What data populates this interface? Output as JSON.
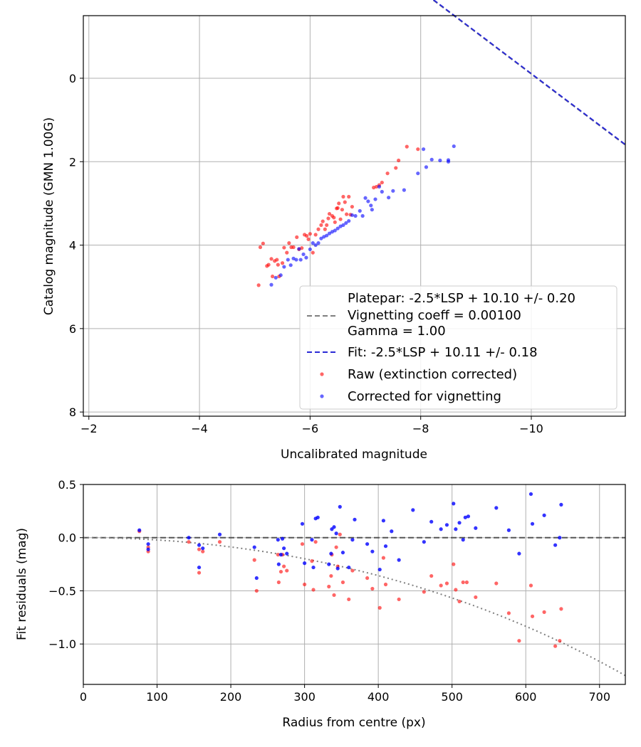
{
  "chart_data": [
    {
      "type": "scatter",
      "xlabel": "Uncalibrated magnitude",
      "ylabel": "Catalog magnitude (GMN 1.00G)",
      "xlim": [
        -1.9,
        -11.7
      ],
      "ylim": [
        8.1,
        -1.5
      ],
      "xticks": [
        -2,
        -4,
        -6,
        -8,
        -10
      ],
      "xtick_labels": [
        "−2",
        "−4",
        "−6",
        "−8",
        "−10"
      ],
      "yticks": [
        0,
        2,
        4,
        6,
        8
      ],
      "ytick_labels": [
        "0",
        "2",
        "4",
        "6",
        "8"
      ],
      "grid": true,
      "legend_position": "lower-right",
      "legend": [
        {
          "label": "Platepar: -2.5*LSP + 10.10 +/- 0.20",
          "marker": "none"
        },
        {
          "label": "Vignetting coeff = 0.00100",
          "marker": "dashed-line",
          "color": "#7f7f7f"
        },
        {
          "label": "Gamma = 1.00",
          "marker": "none"
        },
        {
          "label": "Fit: -2.5*LSP + 10.11 +/- 0.18",
          "marker": "dashed-line",
          "color": "#2a2ad6"
        },
        {
          "label": "Raw (extinction corrected)",
          "marker": "dot",
          "color": "#ff0000"
        },
        {
          "label": "Corrected for vignetting",
          "marker": "dot",
          "color": "#0000ff"
        }
      ],
      "lines": [
        {
          "name": "Platepar",
          "slope": -1,
          "intercept": -10.1,
          "color": "#7f7f7f",
          "style": "dashed"
        },
        {
          "name": "Fit",
          "slope": -1,
          "intercept": -10.11,
          "color": "#2a2ad6",
          "style": "dashed"
        }
      ],
      "series": [
        {
          "name": "Raw (extinction corrected)",
          "color": "#ff0000",
          "points": [
            [
              -5.07,
              4.96
            ],
            [
              -5.1,
              4.05
            ],
            [
              -5.15,
              3.96
            ],
            [
              -5.22,
              4.5
            ],
            [
              -5.25,
              4.47
            ],
            [
              -5.3,
              4.33
            ],
            [
              -5.32,
              4.75
            ],
            [
              -5.36,
              4.38
            ],
            [
              -5.4,
              4.35
            ],
            [
              -5.42,
              4.47
            ],
            [
              -5.44,
              4.75
            ],
            [
              -5.5,
              4.43
            ],
            [
              -5.53,
              4.06
            ],
            [
              -5.58,
              4.18
            ],
            [
              -5.62,
              3.95
            ],
            [
              -5.66,
              4.05
            ],
            [
              -5.7,
              4.05
            ],
            [
              -5.76,
              3.81
            ],
            [
              -5.8,
              4.1
            ],
            [
              -5.85,
              4.07
            ],
            [
              -5.9,
              3.75
            ],
            [
              -5.94,
              3.78
            ],
            [
              -5.97,
              3.86
            ],
            [
              -6.0,
              3.73
            ],
            [
              -6.05,
              4.18
            ],
            [
              -6.1,
              3.75
            ],
            [
              -6.15,
              3.62
            ],
            [
              -6.2,
              3.52
            ],
            [
              -6.23,
              3.43
            ],
            [
              -6.27,
              3.62
            ],
            [
              -6.3,
              3.52
            ],
            [
              -6.33,
              3.36
            ],
            [
              -6.35,
              3.25
            ],
            [
              -6.4,
              3.3
            ],
            [
              -6.43,
              3.34
            ],
            [
              -6.45,
              3.45
            ],
            [
              -6.48,
              3.12
            ],
            [
              -6.5,
              3.11
            ],
            [
              -6.52,
              3.0
            ],
            [
              -6.55,
              3.38
            ],
            [
              -6.58,
              3.15
            ],
            [
              -6.6,
              2.84
            ],
            [
              -6.63,
              2.97
            ],
            [
              -6.66,
              3.26
            ],
            [
              -6.7,
              2.84
            ],
            [
              -6.73,
              3.27
            ],
            [
              -6.76,
              3.08
            ],
            [
              -7.15,
              2.62
            ],
            [
              -7.2,
              2.6
            ],
            [
              -7.25,
              2.56
            ],
            [
              -7.3,
              2.5
            ],
            [
              -7.4,
              2.28
            ],
            [
              -7.55,
              2.15
            ],
            [
              -7.6,
              1.97
            ],
            [
              -7.75,
              1.64
            ],
            [
              -7.95,
              1.7
            ]
          ]
        },
        {
          "name": "Corrected for vignetting",
          "color": "#0000ff",
          "points": [
            [
              -5.3,
              4.95
            ],
            [
              -5.38,
              4.78
            ],
            [
              -5.47,
              4.72
            ],
            [
              -5.53,
              4.52
            ],
            [
              -5.6,
              4.35
            ],
            [
              -5.65,
              4.48
            ],
            [
              -5.7,
              4.32
            ],
            [
              -5.75,
              4.35
            ],
            [
              -5.8,
              4.09
            ],
            [
              -5.83,
              4.35
            ],
            [
              -5.88,
              4.22
            ],
            [
              -5.93,
              4.3
            ],
            [
              -6.0,
              4.1
            ],
            [
              -6.05,
              3.95
            ],
            [
              -6.1,
              4.0
            ],
            [
              -6.15,
              3.95
            ],
            [
              -6.2,
              3.84
            ],
            [
              -6.25,
              3.8
            ],
            [
              -6.3,
              3.77
            ],
            [
              -6.35,
              3.72
            ],
            [
              -6.4,
              3.68
            ],
            [
              -6.45,
              3.65
            ],
            [
              -6.5,
              3.6
            ],
            [
              -6.55,
              3.55
            ],
            [
              -6.6,
              3.52
            ],
            [
              -6.65,
              3.47
            ],
            [
              -6.7,
              3.42
            ],
            [
              -6.76,
              3.28
            ],
            [
              -6.82,
              3.3
            ],
            [
              -6.9,
              3.18
            ],
            [
              -6.95,
              3.3
            ],
            [
              -7.0,
              2.87
            ],
            [
              -7.05,
              2.95
            ],
            [
              -7.1,
              3.05
            ],
            [
              -7.12,
              3.15
            ],
            [
              -7.18,
              2.9
            ],
            [
              -7.25,
              2.6
            ],
            [
              -7.3,
              2.72
            ],
            [
              -7.42,
              2.86
            ],
            [
              -7.5,
              2.7
            ],
            [
              -7.7,
              2.68
            ],
            [
              -7.95,
              2.28
            ],
            [
              -8.05,
              1.7
            ],
            [
              -8.1,
              2.13
            ],
            [
              -8.2,
              1.95
            ],
            [
              -8.35,
              1.97
            ],
            [
              -8.5,
              1.96
            ],
            [
              -8.5,
              2.0
            ],
            [
              -8.6,
              1.63
            ]
          ]
        }
      ]
    },
    {
      "type": "scatter",
      "xlabel": "Radius from centre (px)",
      "ylabel": "Fit residuals (mag)",
      "xlim": [
        0,
        735
      ],
      "ylim": [
        -1.38,
        0.5
      ],
      "xticks": [
        0,
        100,
        200,
        300,
        400,
        500,
        600,
        700
      ],
      "xtick_labels": [
        "0",
        "100",
        "200",
        "300",
        "400",
        "500",
        "600",
        "700"
      ],
      "yticks": [
        0.5,
        0.0,
        -0.5,
        -1.0
      ],
      "ytick_labels": [
        "0.5",
        "0.0",
        "−0.5",
        "−1.0"
      ],
      "grid": true,
      "reference_line": {
        "y": 0,
        "style": "dashed",
        "color": "#555555"
      },
      "vignetting_curve": {
        "coeff": 0.001,
        "style": "dotted",
        "color": "#7f7f7f"
      },
      "series": [
        {
          "name": "Raw (extinction corrected)",
          "color": "#ff0000",
          "points": [
            [
              76,
              0.06
            ],
            [
              88,
              -0.09
            ],
            [
              88,
              -0.13
            ],
            [
              143,
              -0.04
            ],
            [
              157,
              -0.11
            ],
            [
              157,
              -0.33
            ],
            [
              162,
              -0.13
            ],
            [
              185,
              -0.04
            ],
            [
              232,
              -0.21
            ],
            [
              235,
              -0.5
            ],
            [
              264,
              -0.16
            ],
            [
              265,
              -0.42
            ],
            [
              268,
              -0.32
            ],
            [
              270,
              -0.16
            ],
            [
              272,
              -0.27
            ],
            [
              276,
              -0.31
            ],
            [
              297,
              -0.06
            ],
            [
              300,
              -0.44
            ],
            [
              310,
              -0.22
            ],
            [
              312,
              -0.49
            ],
            [
              315,
              -0.04
            ],
            [
              333,
              -0.46
            ],
            [
              336,
              -0.36
            ],
            [
              337,
              -0.16
            ],
            [
              340,
              -0.54
            ],
            [
              343,
              -0.09
            ],
            [
              345,
              -0.27
            ],
            [
              348,
              0.03
            ],
            [
              352,
              -0.42
            ],
            [
              360,
              -0.58
            ],
            [
              365,
              -0.31
            ],
            [
              385,
              -0.38
            ],
            [
              392,
              -0.48
            ],
            [
              402,
              -0.66
            ],
            [
              407,
              -0.19
            ],
            [
              410,
              -0.44
            ],
            [
              428,
              -0.58
            ],
            [
              462,
              -0.51
            ],
            [
              472,
              -0.36
            ],
            [
              485,
              -0.45
            ],
            [
              493,
              -0.43
            ],
            [
              502,
              -0.25
            ],
            [
              505,
              -0.49
            ],
            [
              510,
              -0.6
            ],
            [
              515,
              -0.42
            ],
            [
              520,
              -0.42
            ],
            [
              532,
              -0.56
            ],
            [
              560,
              -0.43
            ],
            [
              577,
              -0.71
            ],
            [
              591,
              -0.97
            ],
            [
              607,
              -0.45
            ],
            [
              609,
              -0.74
            ],
            [
              625,
              -0.7
            ],
            [
              640,
              -1.02
            ],
            [
              646,
              -0.97
            ],
            [
              648,
              -0.67
            ]
          ]
        },
        {
          "name": "Corrected for vignetting",
          "color": "#0000ff",
          "points": [
            [
              76,
              0.07
            ],
            [
              88,
              -0.06
            ],
            [
              88,
              -0.11
            ],
            [
              143,
              0.0
            ],
            [
              157,
              -0.07
            ],
            [
              157,
              -0.28
            ],
            [
              162,
              -0.1
            ],
            [
              185,
              0.03
            ],
            [
              232,
              -0.09
            ],
            [
              235,
              -0.38
            ],
            [
              264,
              -0.02
            ],
            [
              265,
              -0.25
            ],
            [
              268,
              -0.16
            ],
            [
              270,
              -0.01
            ],
            [
              272,
              -0.1
            ],
            [
              276,
              -0.15
            ],
            [
              297,
              0.13
            ],
            [
              300,
              -0.24
            ],
            [
              310,
              -0.02
            ],
            [
              312,
              -0.28
            ],
            [
              315,
              0.18
            ],
            [
              318,
              0.19
            ],
            [
              333,
              -0.25
            ],
            [
              336,
              -0.15
            ],
            [
              337,
              0.08
            ],
            [
              340,
              0.1
            ],
            [
              343,
              0.04
            ],
            [
              345,
              -0.29
            ],
            [
              348,
              0.29
            ],
            [
              352,
              -0.14
            ],
            [
              360,
              -0.28
            ],
            [
              365,
              -0.02
            ],
            [
              368,
              0.17
            ],
            [
              385,
              -0.06
            ],
            [
              392,
              -0.13
            ],
            [
              402,
              -0.3
            ],
            [
              407,
              0.16
            ],
            [
              410,
              -0.08
            ],
            [
              418,
              0.06
            ],
            [
              428,
              -0.21
            ],
            [
              447,
              0.26
            ],
            [
              462,
              -0.04
            ],
            [
              472,
              0.15
            ],
            [
              485,
              0.08
            ],
            [
              493,
              0.12
            ],
            [
              502,
              0.32
            ],
            [
              505,
              0.08
            ],
            [
              510,
              0.14
            ],
            [
              515,
              -0.02
            ],
            [
              518,
              0.19
            ],
            [
              522,
              0.2
            ],
            [
              532,
              0.09
            ],
            [
              560,
              0.28
            ],
            [
              577,
              0.07
            ],
            [
              591,
              -0.15
            ],
            [
              607,
              0.41
            ],
            [
              609,
              0.13
            ],
            [
              625,
              0.21
            ],
            [
              640,
              -0.07
            ],
            [
              646,
              0.0
            ],
            [
              648,
              0.31
            ]
          ]
        }
      ]
    }
  ]
}
